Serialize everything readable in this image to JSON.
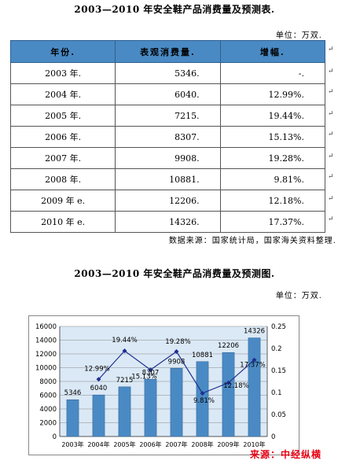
{
  "table_title": "2003—2010 年安全鞋产品消费量及预测表.",
  "table_unit": "单位：万双.",
  "table": {
    "headers": [
      "年份.",
      "表观消费量.",
      "增幅."
    ],
    "rows": [
      {
        "year": "2003 年.",
        "value": "5346.",
        "growth": "-."
      },
      {
        "year": "2004 年.",
        "value": "6040.",
        "growth": "12.99%."
      },
      {
        "year": "2005 年.",
        "value": "7215.",
        "growth": "19.44%."
      },
      {
        "year": "2006 年.",
        "value": "8307.",
        "growth": "15.13%."
      },
      {
        "year": "2007 年.",
        "value": "9908.",
        "growth": "19.28%."
      },
      {
        "year": "2008 年.",
        "value": "10881.",
        "growth": "9.81%."
      },
      {
        "year": "2009 年 e.",
        "value": "12206.",
        "growth": "12.18%."
      },
      {
        "year": "2010 年 e.",
        "value": "14326.",
        "growth": "17.37%."
      }
    ]
  },
  "source_note": "数据来源：国家统计局，国家海关资料整理.",
  "chart_title": "2003—2010 年安全鞋产品消费量及预测图.",
  "chart_unit": "单位：万双.",
  "watermark": "来源：中经纵横",
  "chart_data": {
    "type": "bar",
    "categories": [
      "2003年",
      "2004年",
      "2005年",
      "2006年",
      "2007年",
      "2008年",
      "2009年",
      "2010年"
    ],
    "series": [
      {
        "values": [
          5346,
          6040,
          7215,
          8307,
          9908,
          10881,
          12206,
          14326
        ],
        "labels": [
          "5346",
          "6040",
          "7215",
          "8307",
          "9908",
          "10881",
          "12206",
          "14326"
        ],
        "axis": "left",
        "kind": "bar",
        "color": "#4a8ac4"
      },
      {
        "values": [
          null,
          0.1299,
          0.1944,
          0.1513,
          0.1928,
          0.0981,
          0.1218,
          0.1737
        ],
        "labels": [
          "",
          "12.99%",
          "19.44%",
          "15.13%",
          "19.28%",
          "9.81%",
          "12.18%",
          "17.37%"
        ],
        "axis": "right",
        "kind": "line",
        "color": "#1f2f8f"
      }
    ],
    "left_axis": {
      "min": 0,
      "max": 16000,
      "ticks": [
        "0",
        "2000",
        "4000",
        "6000",
        "8000",
        "10000",
        "12000",
        "14000",
        "16000"
      ]
    },
    "right_axis": {
      "min": 0,
      "max": 0.25,
      "ticks": [
        "0",
        "0.05",
        "0.1",
        "0.15",
        "0.2",
        "0.25"
      ]
    },
    "grid": true,
    "background": "#dbe9f6"
  }
}
